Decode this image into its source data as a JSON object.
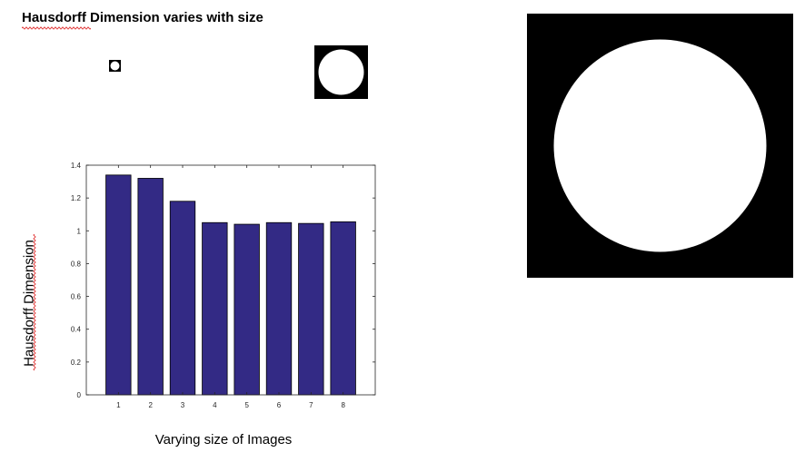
{
  "title": "Hausdorff Dimension varies with size",
  "colors": {
    "bar_fill": "#332A85",
    "bar_stroke": "#000000",
    "axis": "#262626",
    "spellcheck": "#E03030"
  },
  "chart_data": {
    "type": "bar",
    "categories": [
      "1",
      "2",
      "3",
      "4",
      "5",
      "6",
      "7",
      "8"
    ],
    "values": [
      1.34,
      1.32,
      1.18,
      1.05,
      1.04,
      1.05,
      1.045,
      1.055
    ],
    "xlabel": "Varying size of Images",
    "ylabel": "Hausdorff Dimension",
    "ylim": [
      0,
      1.4
    ],
    "yticks": [
      "0",
      "0.2",
      "0.4",
      "0.6",
      "0.8",
      "1",
      "1.2",
      "1.4"
    ],
    "grid": false,
    "legend": "none"
  }
}
